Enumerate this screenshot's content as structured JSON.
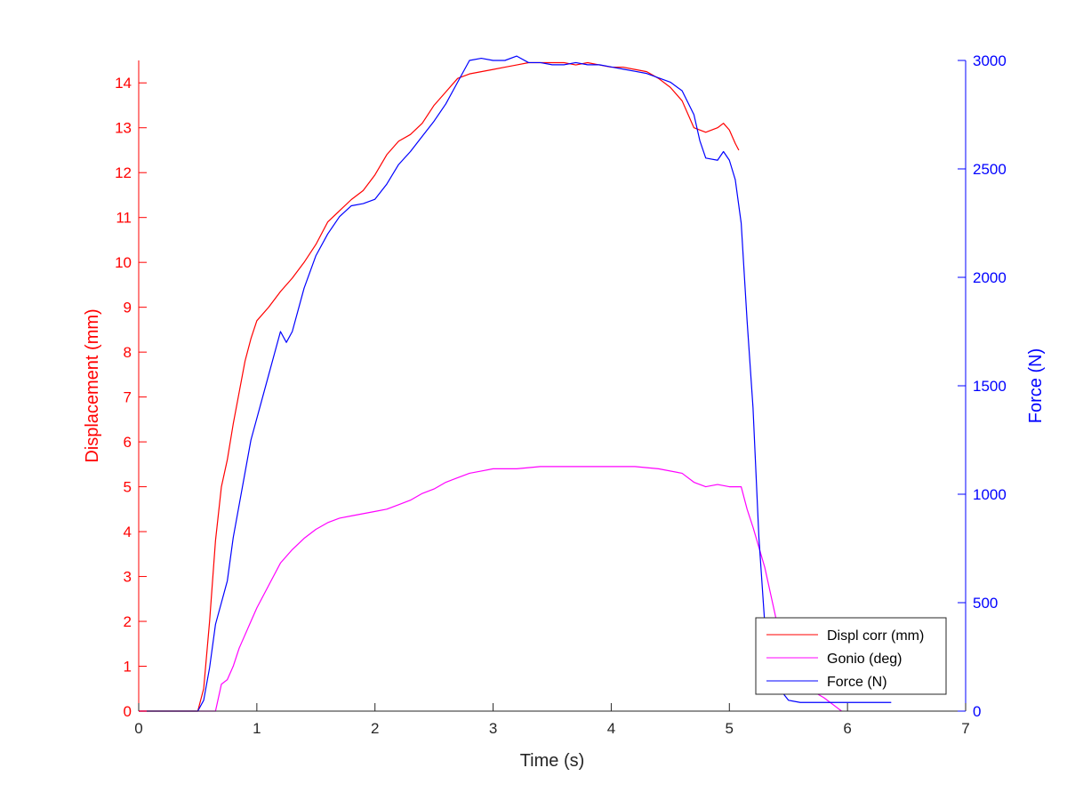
{
  "chart_data": {
    "type": "line",
    "xlabel": "Time (s)",
    "ylabel_left": "Displacement (mm)",
    "ylabel_right": "Force (N)",
    "xlim": [
      0,
      7
    ],
    "ylim_left": [
      0,
      14.5
    ],
    "ylim_right": [
      0,
      3000
    ],
    "xticks": [
      0,
      1,
      2,
      3,
      4,
      5,
      6,
      7
    ],
    "yticks_left": [
      0,
      1,
      2,
      3,
      4,
      5,
      6,
      7,
      8,
      9,
      10,
      11,
      12,
      13,
      14
    ],
    "yticks_right": [
      0,
      500,
      1000,
      1500,
      2000,
      2500,
      3000
    ],
    "grid": false,
    "legend_position": "bottom-right",
    "colors": {
      "left_axis": "#ff0000",
      "right_axis": "#0000ff",
      "frame": "#262626"
    },
    "series": [
      {
        "name": "Displ corr (mm)",
        "axis": "left",
        "color": "#ff0000",
        "x": [
          0,
          0.5,
          0.55,
          0.6,
          0.65,
          0.7,
          0.75,
          0.8,
          0.85,
          0.9,
          0.95,
          1.0,
          1.1,
          1.2,
          1.3,
          1.4,
          1.5,
          1.6,
          1.7,
          1.8,
          1.9,
          2.0,
          2.1,
          2.2,
          2.3,
          2.4,
          2.5,
          2.6,
          2.7,
          2.8,
          2.9,
          3.0,
          3.1,
          3.2,
          3.3,
          3.4,
          3.5,
          3.6,
          3.7,
          3.8,
          3.9,
          4.0,
          4.1,
          4.2,
          4.3,
          4.4,
          4.5,
          4.6,
          4.7,
          4.8,
          4.9,
          4.95,
          5.0,
          5.05,
          5.08
        ],
        "y": [
          0,
          0,
          0.5,
          2.0,
          3.8,
          5.0,
          5.6,
          6.4,
          7.1,
          7.8,
          8.3,
          8.7,
          9.0,
          9.35,
          9.65,
          10.0,
          10.4,
          10.9,
          11.15,
          11.4,
          11.6,
          11.95,
          12.4,
          12.7,
          12.85,
          13.1,
          13.5,
          13.8,
          14.1,
          14.2,
          14.25,
          14.3,
          14.35,
          14.4,
          14.45,
          14.45,
          14.45,
          14.45,
          14.4,
          14.45,
          14.4,
          14.35,
          14.35,
          14.3,
          14.25,
          14.1,
          13.9,
          13.6,
          13.0,
          12.9,
          13.0,
          13.1,
          12.95,
          12.65,
          12.5
        ]
      },
      {
        "name": "Gonio (deg)",
        "axis": "left",
        "color": "#ff00ff",
        "x": [
          0,
          0.5,
          0.55,
          0.6,
          0.65,
          0.7,
          0.75,
          0.8,
          0.85,
          0.9,
          0.95,
          1.0,
          1.1,
          1.2,
          1.3,
          1.4,
          1.5,
          1.6,
          1.7,
          1.8,
          1.9,
          2.0,
          2.1,
          2.2,
          2.3,
          2.4,
          2.5,
          2.6,
          2.7,
          2.8,
          2.9,
          3.0,
          3.2,
          3.4,
          3.6,
          3.8,
          4.0,
          4.2,
          4.4,
          4.6,
          4.7,
          4.8,
          4.9,
          5.0,
          5.1,
          5.15,
          5.2,
          5.3,
          5.4,
          5.5,
          5.6,
          5.7,
          5.8,
          5.9,
          5.95
        ],
        "y": [
          0,
          0,
          0,
          0,
          0,
          0.6,
          0.7,
          1.0,
          1.4,
          1.7,
          2.0,
          2.3,
          2.8,
          3.3,
          3.6,
          3.85,
          4.05,
          4.2,
          4.3,
          4.35,
          4.4,
          4.45,
          4.5,
          4.6,
          4.7,
          4.85,
          4.95,
          5.1,
          5.2,
          5.3,
          5.35,
          5.4,
          5.4,
          5.45,
          5.45,
          5.45,
          5.45,
          5.45,
          5.4,
          5.3,
          5.1,
          5.0,
          5.05,
          5.0,
          5.0,
          4.5,
          4.1,
          3.2,
          2.0,
          1.2,
          0.7,
          0.45,
          0.3,
          0.1,
          0
        ]
      },
      {
        "name": "Force (N)",
        "axis": "right",
        "color": "#0000ff",
        "x": [
          0,
          0.5,
          0.55,
          0.6,
          0.65,
          0.7,
          0.75,
          0.8,
          0.85,
          0.9,
          0.95,
          1.0,
          1.05,
          1.1,
          1.15,
          1.2,
          1.25,
          1.3,
          1.4,
          1.5,
          1.6,
          1.7,
          1.8,
          1.9,
          2.0,
          2.1,
          2.2,
          2.3,
          2.4,
          2.5,
          2.6,
          2.7,
          2.8,
          2.9,
          3.0,
          3.1,
          3.2,
          3.3,
          3.4,
          3.5,
          3.6,
          3.7,
          3.8,
          3.9,
          4.0,
          4.1,
          4.2,
          4.3,
          4.4,
          4.5,
          4.6,
          4.7,
          4.75,
          4.8,
          4.9,
          4.95,
          5.0,
          5.05,
          5.1,
          5.15,
          5.2,
          5.25,
          5.3,
          5.35,
          5.4,
          5.5,
          5.6,
          5.8,
          6.0,
          6.2,
          6.37
        ],
        "y": [
          0,
          0,
          50,
          200,
          400,
          500,
          600,
          800,
          950,
          1100,
          1250,
          1350,
          1450,
          1550,
          1650,
          1750,
          1700,
          1750,
          1950,
          2100,
          2200,
          2280,
          2330,
          2340,
          2360,
          2430,
          2520,
          2580,
          2650,
          2720,
          2800,
          2900,
          3000,
          3010,
          3000,
          3000,
          3020,
          2990,
          2990,
          2980,
          2980,
          2990,
          2980,
          2980,
          2970,
          2960,
          2950,
          2940,
          2920,
          2900,
          2860,
          2750,
          2630,
          2550,
          2540,
          2580,
          2540,
          2450,
          2250,
          1800,
          1400,
          800,
          400,
          220,
          120,
          50,
          40,
          40,
          40,
          40,
          40
        ]
      }
    ]
  }
}
